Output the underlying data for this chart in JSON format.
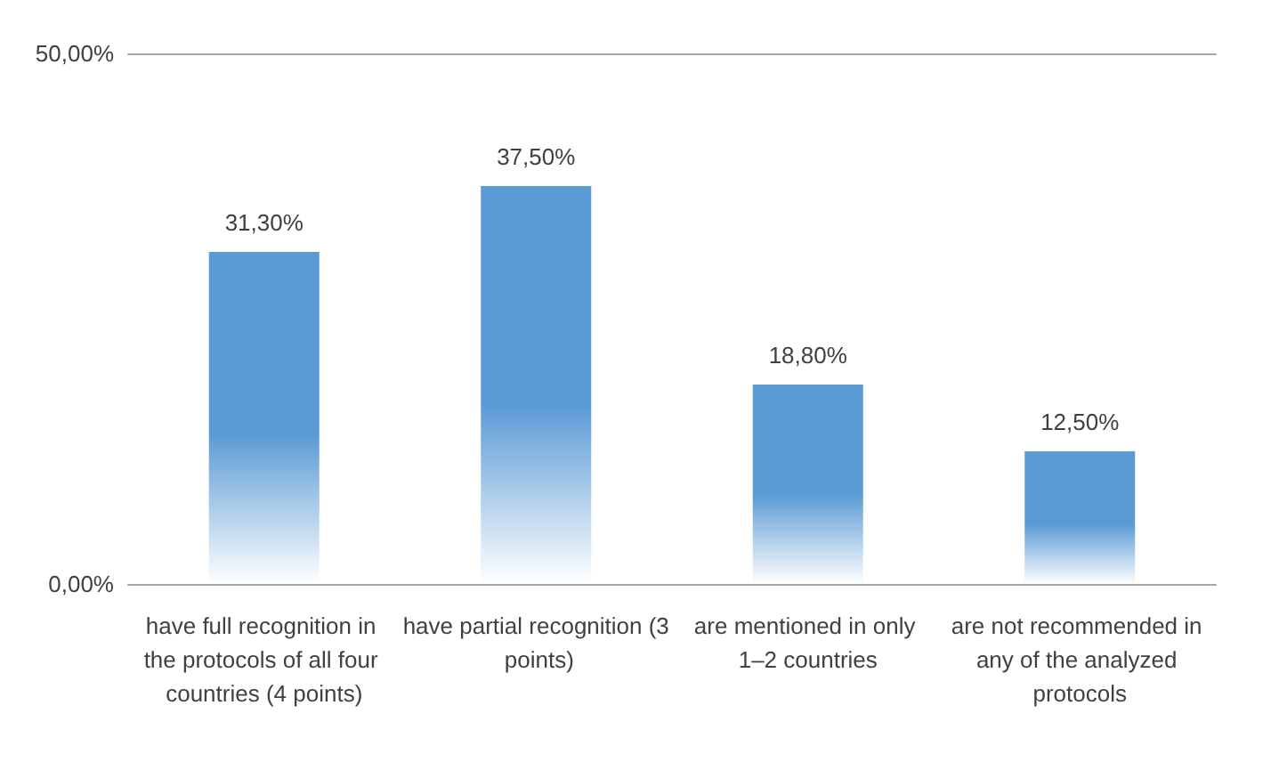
{
  "chart_data": {
    "type": "bar",
    "categories": [
      "have full recognition in the protocols of all four countries (4 points)",
      "have partial recognition (3 points)",
      "are mentioned in only 1–2 countries",
      "are not recommended in any of the analyzed protocols"
    ],
    "values": [
      31.3,
      37.5,
      18.8,
      12.5
    ],
    "value_labels": [
      "31,30%",
      "37,50%",
      "18,80%",
      "12,50%"
    ],
    "color": "#5b9bd5",
    "ylim": [
      0,
      50
    ],
    "yticks": [
      {
        "value": 0,
        "label": "0,00%"
      },
      {
        "value": 50,
        "label": "50,00%"
      }
    ]
  }
}
